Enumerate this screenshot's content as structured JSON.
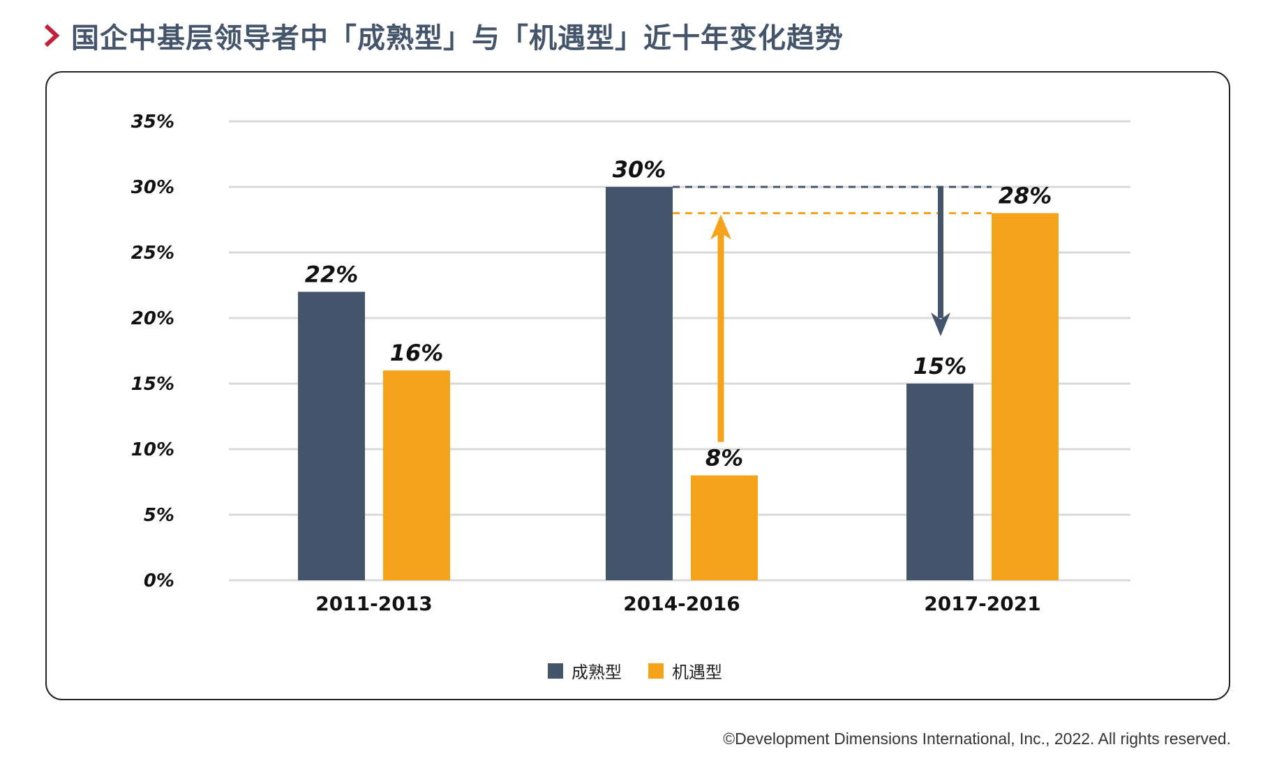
{
  "header": {
    "title": "国企中基层领导者中「成熟型」与「机遇型」近十年变化趋势"
  },
  "colors": {
    "accent": "#c0203a",
    "mature": "#44546a",
    "opportunity": "#f5a31a",
    "grid": "#d9d9d9"
  },
  "chart_data": {
    "type": "bar",
    "title": "国企中基层领导者中「成熟型」与「机遇型」近十年变化趋势",
    "xlabel": "",
    "ylabel": "",
    "ylim": [
      0,
      35
    ],
    "yticks": [
      "0%",
      "5%",
      "10%",
      "15%",
      "20%",
      "25%",
      "30%",
      "35%"
    ],
    "ytick_values": [
      0,
      5,
      10,
      15,
      20,
      25,
      30,
      35
    ],
    "grid": true,
    "legend_position": "bottom-center",
    "categories": [
      "2011-2013",
      "2014-2016",
      "2017-2021"
    ],
    "series": [
      {
        "name": "成熟型",
        "values": [
          22,
          30,
          15
        ],
        "labels": [
          "22%",
          "30%",
          "15%"
        ],
        "color": "#44546a"
      },
      {
        "name": "机遇型",
        "values": [
          16,
          8,
          28
        ],
        "labels": [
          "16%",
          "8%",
          "28%"
        ],
        "color": "#f5a31a"
      }
    ],
    "annotations": [
      {
        "type": "arrow-up",
        "series": "机遇型",
        "from": 8,
        "to": 28,
        "color": "#f5a31a"
      },
      {
        "type": "arrow-down",
        "series": "成熟型",
        "from": 30,
        "to": 15,
        "color": "#44546a"
      }
    ]
  },
  "footer": {
    "copyright": "©Development Dimensions International, Inc., 2022. All rights reserved."
  }
}
